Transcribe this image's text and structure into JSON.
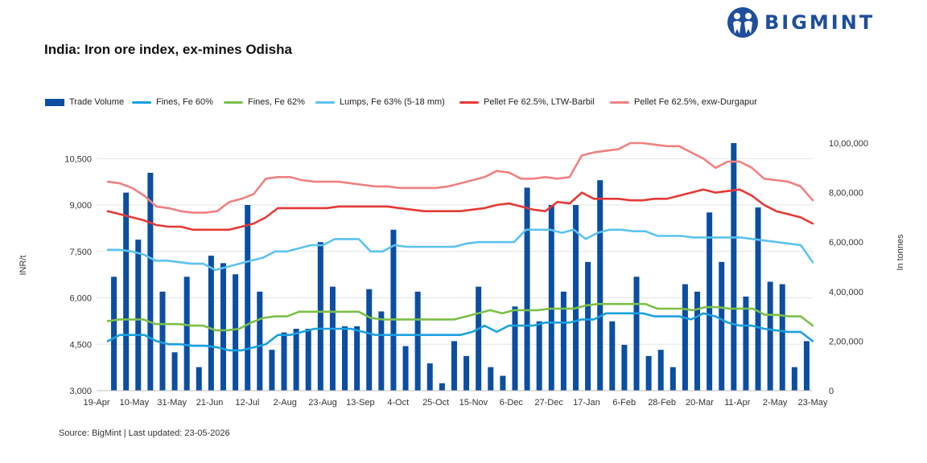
{
  "brand": {
    "name": "BIGMINT"
  },
  "source_text": "Source: BigMint | Last updated: 23-05-2026",
  "chart_data": {
    "type": "bar+line",
    "title": "India: Iron ore index, ex-mines Odisha",
    "ylabel_left": "INR/t",
    "ylabel_right": "In tonnes",
    "ylim_left": [
      3000,
      11000
    ],
    "ylim_right": [
      0,
      1000000
    ],
    "yticks_left": [
      "3,000",
      "4,500",
      "6,000",
      "7,500",
      "9,000",
      "10,500"
    ],
    "yticks_right": [
      "0",
      "2,00,000",
      "4,00,000",
      "6,00,000",
      "8,00,000",
      "10,00,000"
    ],
    "xtick_labels": [
      "19-Apr",
      "10-May",
      "31-May",
      "21-Jun",
      "12-Jul",
      "2-Aug",
      "23-Aug",
      "13-Sep",
      "4-Oct",
      "25-Oct",
      "15-Nov",
      "6-Dec",
      "27-Dec",
      "17-Jan",
      "6-Feb",
      "28-Feb",
      "20-Mar",
      "11-Apr",
      "2-May",
      "23-May"
    ],
    "grid": "horizontal",
    "legend_position": "top",
    "bars": {
      "name": "Trade Volume",
      "color": "#0b4ea2",
      "values": [
        460000,
        800000,
        610000,
        880000,
        400000,
        155000,
        460000,
        95000,
        545000,
        515000,
        470000,
        750000,
        400000,
        165000,
        235000,
        250000,
        250000,
        600000,
        420000,
        260000,
        260000,
        410000,
        320000,
        650000,
        180000,
        400000,
        110000,
        30000,
        200000,
        140000,
        420000,
        95000,
        60000,
        340000,
        820000,
        280000,
        750000,
        400000,
        750000,
        520000,
        850000,
        280000,
        185000,
        460000,
        140000,
        165000,
        95000,
        430000,
        400000,
        720000,
        520000,
        1000000,
        380000,
        740000,
        440000,
        430000,
        95000,
        200000
      ]
    },
    "series": [
      {
        "name": "Fines, Fe 60%",
        "color": "#1aa0e0",
        "values": [
          4600,
          4800,
          4800,
          4800,
          4600,
          4500,
          4500,
          4450,
          4450,
          4400,
          4300,
          4300,
          4400,
          4500,
          4800,
          4800,
          4900,
          5000,
          5000,
          5000,
          5000,
          4900,
          4800,
          4800,
          4800,
          4800,
          4800,
          4800,
          4800,
          4800,
          4900,
          5100,
          4900,
          5100,
          5100,
          5100,
          5200,
          5200,
          5200,
          5300,
          5300,
          5500,
          5500,
          5500,
          5500,
          5400,
          5400,
          5400,
          5300,
          5500,
          5400,
          5200,
          5100,
          5100,
          5000,
          4950,
          4900,
          4900,
          4600
        ]
      },
      {
        "name": "Fines, Fe 62%",
        "color": "#7cbf48",
        "values": [
          5250,
          5300,
          5300,
          5300,
          5150,
          5150,
          5150,
          5100,
          5100,
          4950,
          4950,
          5000,
          5200,
          5350,
          5400,
          5400,
          5550,
          5550,
          5550,
          5550,
          5550,
          5550,
          5350,
          5300,
          5300,
          5300,
          5300,
          5300,
          5300,
          5300,
          5400,
          5500,
          5600,
          5500,
          5600,
          5600,
          5600,
          5650,
          5650,
          5650,
          5750,
          5800,
          5800,
          5800,
          5800,
          5800,
          5650,
          5650,
          5650,
          5600,
          5700,
          5700,
          5650,
          5650,
          5650,
          5450,
          5450,
          5400,
          5400,
          5100
        ]
      },
      {
        "name": "Lumps, Fe 63% (5-18 mm)",
        "color": "#5bc3ef",
        "values": [
          7550,
          7550,
          7500,
          7400,
          7200,
          7200,
          7150,
          7100,
          7100,
          6900,
          7000,
          7100,
          7200,
          7300,
          7500,
          7500,
          7600,
          7700,
          7700,
          7900,
          7900,
          7900,
          7500,
          7500,
          7700,
          7650,
          7650,
          7650,
          7650,
          7650,
          7750,
          7800,
          7800,
          7800,
          7800,
          8200,
          8200,
          8200,
          8100,
          8200,
          7900,
          8100,
          8200,
          8200,
          8150,
          8150,
          8000,
          8000,
          8000,
          7950,
          7950,
          7950,
          7950,
          7950,
          7900,
          7850,
          7800,
          7750,
          7700,
          7150
        ]
      },
      {
        "name": "Pellet Fe 62.5%, LTW-Barbil",
        "color": "#e53935",
        "values": [
          8800,
          8700,
          8600,
          8500,
          8350,
          8300,
          8300,
          8200,
          8200,
          8200,
          8200,
          8300,
          8400,
          8600,
          8900,
          8900,
          8900,
          8900,
          8900,
          8950,
          8950,
          8950,
          8950,
          8950,
          8900,
          8850,
          8800,
          8800,
          8800,
          8800,
          8850,
          8900,
          9000,
          9050,
          8950,
          8850,
          8800,
          9100,
          9050,
          9400,
          9200,
          9200,
          9200,
          9150,
          9150,
          9200,
          9200,
          9300,
          9400,
          9500,
          9400,
          9450,
          9500,
          9300,
          9000,
          8800,
          8700,
          8600,
          8400
        ]
      },
      {
        "name": "Pellet Fe 62.5%, exw-Durgapur",
        "color": "#f08080",
        "values": [
          9750,
          9700,
          9550,
          9300,
          8950,
          8900,
          8800,
          8750,
          8750,
          8800,
          9100,
          9200,
          9350,
          9850,
          9900,
          9900,
          9800,
          9750,
          9750,
          9750,
          9700,
          9650,
          9600,
          9600,
          9550,
          9550,
          9550,
          9550,
          9600,
          9700,
          9800,
          9900,
          10100,
          10050,
          9850,
          9850,
          9900,
          9850,
          9900,
          10600,
          10700,
          10750,
          10800,
          11000,
          11000,
          10950,
          10900,
          10900,
          10700,
          10500,
          10200,
          10400,
          10400,
          10200,
          9850,
          9800,
          9750,
          9600,
          9150
        ]
      }
    ]
  }
}
